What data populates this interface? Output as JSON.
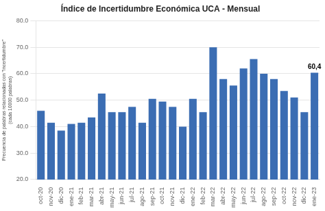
{
  "chart_data": {
    "type": "bar",
    "title": "Índice de Incertidumbre Económica UCA - Mensual",
    "ylabel": "Frecuencia de palabras relacionadas con \"incertidumbre\"\n(cada 10000 palabras)",
    "categories": [
      "oct-20",
      "nov-20",
      "dic-20",
      "ene-21",
      "feb-21",
      "mar-21",
      "abr-21",
      "may-21",
      "jun-21",
      "jul-21",
      "ago-21",
      "sep-21",
      "oct-21",
      "nov-21",
      "dic-21",
      "ene-22",
      "feb-22",
      "mar-22",
      "abr-22",
      "may-22",
      "jun-22",
      "jul-22",
      "ago-22",
      "sep-22",
      "oct-22",
      "nov-22",
      "dic-22",
      "ene-23"
    ],
    "values": [
      46.0,
      41.5,
      38.5,
      41.0,
      41.5,
      43.5,
      52.5,
      45.5,
      45.5,
      47.5,
      41.5,
      50.5,
      49.5,
      47.5,
      40.0,
      50.5,
      45.5,
      70.0,
      58.0,
      55.5,
      62.0,
      65.5,
      60.0,
      58.0,
      53.5,
      51.0,
      45.5,
      60.4
    ],
    "color": "#3B6DB3",
    "annotations": [
      {
        "category": "ene-23",
        "value": 60.4,
        "label": "60,4"
      }
    ],
    "ylim": [
      20.0,
      80.0
    ],
    "yticks": [
      {
        "value": 20,
        "label": "20.0"
      },
      {
        "value": 30,
        "label": "30.0"
      },
      {
        "value": 40,
        "label": "40.0"
      },
      {
        "value": 50,
        "label": "50.0"
      },
      {
        "value": 60,
        "label": "60.0"
      },
      {
        "value": 70,
        "label": "70.0"
      },
      {
        "value": 80,
        "label": "80.0"
      }
    ],
    "grid": true
  }
}
